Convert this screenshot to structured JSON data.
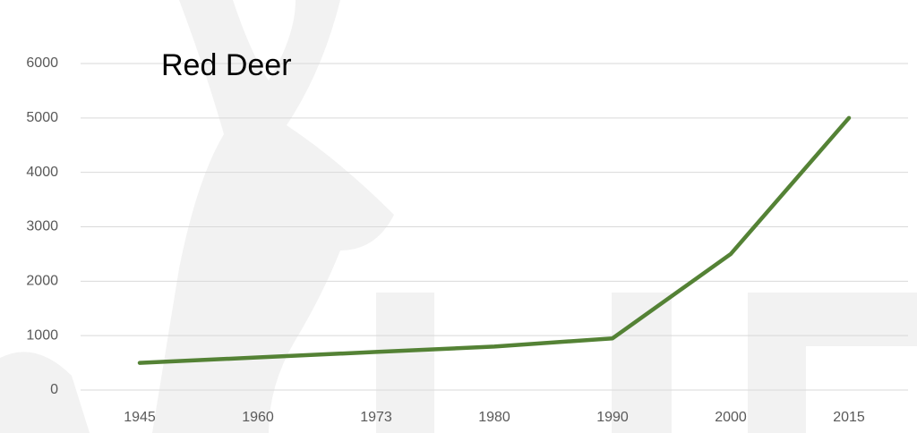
{
  "chart_data": {
    "type": "line",
    "title": "Red Deer",
    "categories": [
      "1945",
      "1960",
      "1973",
      "1980",
      "1990",
      "2000",
      "2015"
    ],
    "series": [
      {
        "name": "Red Deer",
        "color": "#548235",
        "values": [
          500,
          600,
          700,
          800,
          950,
          2500,
          5000
        ]
      }
    ],
    "ylim": [
      0,
      6000
    ],
    "yticks": [
      0,
      1000,
      2000,
      3000,
      4000,
      5000,
      6000
    ],
    "grid": true
  }
}
